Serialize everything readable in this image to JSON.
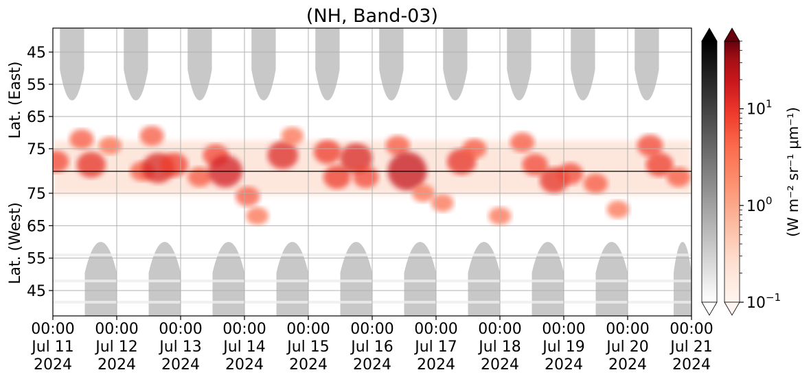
{
  "chart_data": {
    "type": "heatmap",
    "title": "(NH, Band-03)",
    "ylabel_top": "Lat. (East)",
    "ylabel_bottom": "Lat. (West)",
    "y_ticks_top": [
      "45",
      "55",
      "65",
      "75"
    ],
    "y_ticks_bottom": [
      "75",
      "65",
      "55",
      "45"
    ],
    "x_ticks": [
      {
        "time": "00:00",
        "date": "Jul 11",
        "year": "2024"
      },
      {
        "time": "00:00",
        "date": "Jul 12",
        "year": "2024"
      },
      {
        "time": "00:00",
        "date": "Jul 13",
        "year": "2024"
      },
      {
        "time": "00:00",
        "date": "Jul 14",
        "year": "2024"
      },
      {
        "time": "00:00",
        "date": "Jul 15",
        "year": "2024"
      },
      {
        "time": "00:00",
        "date": "Jul 16",
        "year": "2024"
      },
      {
        "time": "00:00",
        "date": "Jul 17",
        "year": "2024"
      },
      {
        "time": "00:00",
        "date": "Jul 18",
        "year": "2024"
      },
      {
        "time": "00:00",
        "date": "Jul 19",
        "year": "2024"
      },
      {
        "time": "00:00",
        "date": "Jul 20",
        "year": "2024"
      },
      {
        "time": "00:00",
        "date": "Jul 21",
        "year": "2024"
      }
    ],
    "x_range": [
      "2024-07-11 00:00",
      "2024-07-21 00:00"
    ],
    "grid": true,
    "colormaps": [
      {
        "name": "Greys",
        "color_low": "#ffffff",
        "color_high": "#000000"
      },
      {
        "name": "Reds",
        "color_low": "#fff5f0",
        "color_high": "#67000d"
      }
    ],
    "colorbar_scale": "log",
    "colorbar_range": [
      0.1,
      50
    ],
    "colorbar_ticks": [
      {
        "value": 0.1,
        "base": "10",
        "exp": "−1"
      },
      {
        "value": 1,
        "base": "10",
        "exp": "0"
      },
      {
        "value": 10,
        "base": "10",
        "exp": "1"
      }
    ],
    "colorbar_label": "(W m⁻² sr⁻¹ μm⁻¹)",
    "grey_regions_east": [
      {
        "day": 11.3,
        "half_width_days": 0.19
      },
      {
        "day": 12.3,
        "half_width_days": 0.19
      },
      {
        "day": 13.3,
        "half_width_days": 0.19
      },
      {
        "day": 14.3,
        "half_width_days": 0.19
      },
      {
        "day": 15.3,
        "half_width_days": 0.19
      },
      {
        "day": 16.3,
        "half_width_days": 0.19
      },
      {
        "day": 17.3,
        "half_width_days": 0.19
      },
      {
        "day": 18.3,
        "half_width_days": 0.19
      },
      {
        "day": 19.3,
        "half_width_days": 0.19
      },
      {
        "day": 20.3,
        "half_width_days": 0.19
      }
    ],
    "grey_regions_west": [
      {
        "day": 11.75,
        "half_width_days": 0.25
      },
      {
        "day": 12.75,
        "half_width_days": 0.25
      },
      {
        "day": 13.75,
        "half_width_days": 0.25
      },
      {
        "day": 14.75,
        "half_width_days": 0.25
      },
      {
        "day": 15.75,
        "half_width_days": 0.25
      },
      {
        "day": 16.75,
        "half_width_days": 0.25
      },
      {
        "day": 17.75,
        "half_width_days": 0.25
      },
      {
        "day": 18.75,
        "half_width_days": 0.25
      },
      {
        "day": 19.75,
        "half_width_days": 0.25
      },
      {
        "day": 20.86,
        "half_width_days": 0.14
      }
    ],
    "red_blobs": [
      {
        "day": 11.05,
        "lat_e": 79,
        "lat_w": null,
        "intensity": 4
      },
      {
        "day": 11.45,
        "lat_e": 72,
        "lat_w": null,
        "intensity": 3
      },
      {
        "day": 11.6,
        "lat_e": 80,
        "lat_w": null,
        "intensity": 6
      },
      {
        "day": 11.9,
        "lat_e": 74,
        "lat_w": null,
        "intensity": 2
      },
      {
        "day": 12.4,
        "lat_e": 82,
        "lat_w": 82,
        "intensity": 3
      },
      {
        "day": 12.55,
        "lat_e": 71,
        "lat_w": null,
        "intensity": 3
      },
      {
        "day": 12.65,
        "lat_e": 81,
        "lat_w": null,
        "intensity": 8
      },
      {
        "day": 12.9,
        "lat_e": 80,
        "lat_w": null,
        "intensity": 5
      },
      {
        "day": 13.3,
        "lat_e": null,
        "lat_w": 80,
        "intensity": 3
      },
      {
        "day": 13.55,
        "lat_e": 77,
        "lat_w": null,
        "intensity": 4
      },
      {
        "day": 13.7,
        "lat_e": 82,
        "lat_w": null,
        "intensity": 9
      },
      {
        "day": 14.05,
        "lat_e": null,
        "lat_w": 74,
        "intensity": 3
      },
      {
        "day": 14.2,
        "lat_e": null,
        "lat_w": 68,
        "intensity": 2
      },
      {
        "day": 14.6,
        "lat_e": 77,
        "lat_w": null,
        "intensity": 7
      },
      {
        "day": 14.75,
        "lat_e": 71,
        "lat_w": null,
        "intensity": 2
      },
      {
        "day": 15.3,
        "lat_e": 76,
        "lat_w": null,
        "intensity": 5
      },
      {
        "day": 15.45,
        "lat_e": null,
        "lat_w": 80,
        "intensity": 5
      },
      {
        "day": 15.75,
        "lat_e": 78,
        "lat_w": null,
        "intensity": 8
      },
      {
        "day": 15.9,
        "lat_e": null,
        "lat_w": 80,
        "intensity": 4
      },
      {
        "day": 16.4,
        "lat_e": 74,
        "lat_w": null,
        "intensity": 3
      },
      {
        "day": 16.55,
        "lat_e": 82,
        "lat_w": null,
        "intensity": 12
      },
      {
        "day": 16.8,
        "lat_e": null,
        "lat_w": 75,
        "intensity": 2
      },
      {
        "day": 17.1,
        "lat_e": null,
        "lat_w": 72,
        "intensity": 2
      },
      {
        "day": 17.4,
        "lat_e": 79,
        "lat_w": null,
        "intensity": 6
      },
      {
        "day": 17.6,
        "lat_e": 75,
        "lat_w": null,
        "intensity": 3
      },
      {
        "day": 18.0,
        "lat_e": null,
        "lat_w": 68,
        "intensity": 2
      },
      {
        "day": 18.35,
        "lat_e": 73,
        "lat_w": null,
        "intensity": 3
      },
      {
        "day": 18.55,
        "lat_e": 80,
        "lat_w": null,
        "intensity": 4
      },
      {
        "day": 18.85,
        "lat_e": null,
        "lat_w": 79,
        "intensity": 6
      },
      {
        "day": 19.1,
        "lat_e": null,
        "lat_w": 81,
        "intensity": 4
      },
      {
        "day": 19.5,
        "lat_e": null,
        "lat_w": 78,
        "intensity": 3
      },
      {
        "day": 19.85,
        "lat_e": null,
        "lat_w": 70,
        "intensity": 2
      },
      {
        "day": 20.35,
        "lat_e": 74,
        "lat_w": null,
        "intensity": 4
      },
      {
        "day": 20.5,
        "lat_e": 80,
        "lat_w": null,
        "intensity": 5
      },
      {
        "day": 20.8,
        "lat_e": null,
        "lat_w": 80,
        "intensity": 3
      }
    ]
  }
}
